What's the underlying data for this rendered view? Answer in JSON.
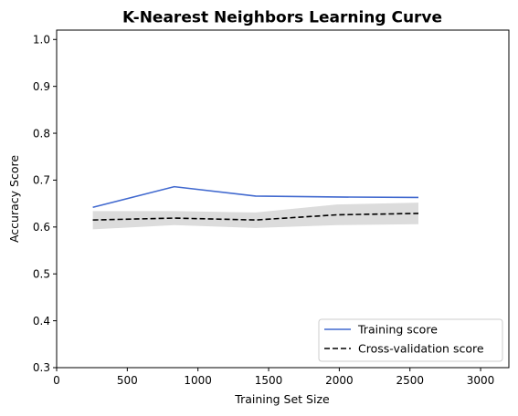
{
  "chart_data": {
    "type": "line",
    "title": "K-Nearest Neighbors Learning Curve",
    "xlabel": "Training Set Size",
    "ylabel": "Accuracy Score",
    "xlim": [
      0,
      3200
    ],
    "ylim": [
      0.3,
      1.02
    ],
    "xticks": [
      0,
      500,
      1000,
      1500,
      2000,
      2500,
      3000
    ],
    "yticks": [
      0.3,
      0.4,
      0.5,
      0.6,
      0.7,
      0.8,
      0.9,
      1.0
    ],
    "grid": false,
    "legend_position": "lower-right",
    "x": [
      256,
      832,
      1408,
      1984,
      2560
    ],
    "series": [
      {
        "name": "Training score",
        "values": [
          0.642,
          0.686,
          0.666,
          0.664,
          0.663
        ],
        "color": "#4169cf",
        "style": "solid"
      },
      {
        "name": "Cross-validation score",
        "values": [
          0.615,
          0.619,
          0.615,
          0.626,
          0.629
        ],
        "band_lower": [
          0.595,
          0.604,
          0.598,
          0.604,
          0.606
        ],
        "band_upper": [
          0.634,
          0.634,
          0.631,
          0.648,
          0.652
        ],
        "band_color": "#dcdcdc",
        "color": "#000000",
        "style": "dashed"
      }
    ]
  }
}
